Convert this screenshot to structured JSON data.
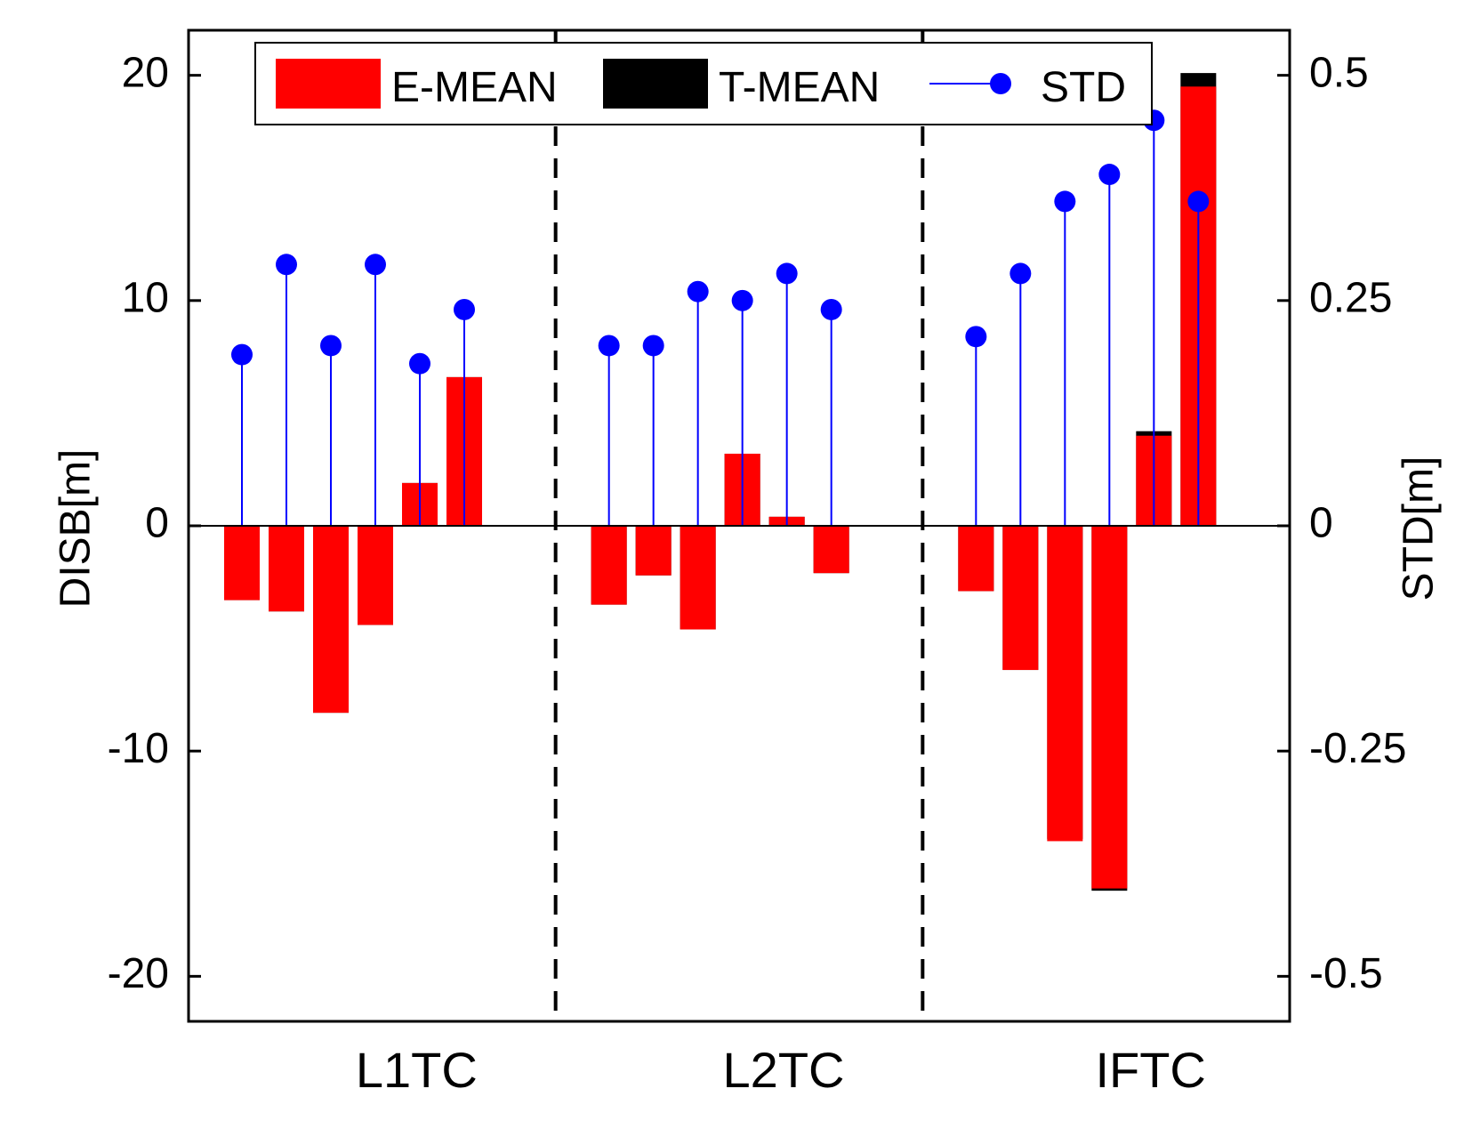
{
  "chart_data": {
    "type": "bar",
    "groups": [
      "L1TC",
      "L2TC",
      "IFTC"
    ],
    "bars_per_group": 6,
    "left_axis": {
      "label": "DISB[m]",
      "ylim": [
        -22,
        22
      ],
      "ticks": [
        20,
        10,
        0,
        -10,
        -20
      ],
      "tick_labels": [
        "20",
        "10",
        "0",
        "-10",
        "-20"
      ]
    },
    "right_axis": {
      "label": "STD[m]",
      "ylim": [
        -0.55,
        0.55
      ],
      "ticks": [
        0.5,
        0.25,
        0,
        -0.25,
        -0.5
      ],
      "tick_labels": [
        "0.5",
        "0.25",
        "0",
        "-0.25",
        "-0.5"
      ]
    },
    "legend": {
      "position": "top",
      "entries": [
        "E-MEAN",
        "T-MEAN",
        "STD"
      ]
    },
    "series": [
      {
        "name": "E-MEAN",
        "axis": "left",
        "color": "#ff0000",
        "values": [
          [
            -3.3,
            -3.8,
            -8.3,
            -4.4,
            1.9,
            6.6
          ],
          [
            -3.5,
            -2.2,
            -4.6,
            3.2,
            0.4,
            -2.1
          ],
          [
            -2.9,
            -6.4,
            -14.0,
            -16.1,
            4.0,
            19.5
          ]
        ]
      },
      {
        "name": "T-MEAN",
        "axis": "left",
        "color": "#000000",
        "values": [
          [
            -3.3,
            -3.8,
            -8.3,
            -4.4,
            1.9,
            6.6
          ],
          [
            -3.5,
            -2.2,
            -4.6,
            3.2,
            0.4,
            -2.1
          ],
          [
            -2.9,
            -6.4,
            -13.9,
            -16.2,
            4.2,
            20.1
          ]
        ]
      },
      {
        "name": "STD",
        "axis": "right",
        "color": "#0000ff",
        "values": [
          [
            0.19,
            0.29,
            0.2,
            0.29,
            0.18,
            0.24
          ],
          [
            0.2,
            0.2,
            0.26,
            0.25,
            0.28,
            0.24
          ],
          [
            0.21,
            0.28,
            0.36,
            0.39,
            0.45,
            0.36
          ]
        ]
      }
    ],
    "group_separators": "dashed"
  }
}
